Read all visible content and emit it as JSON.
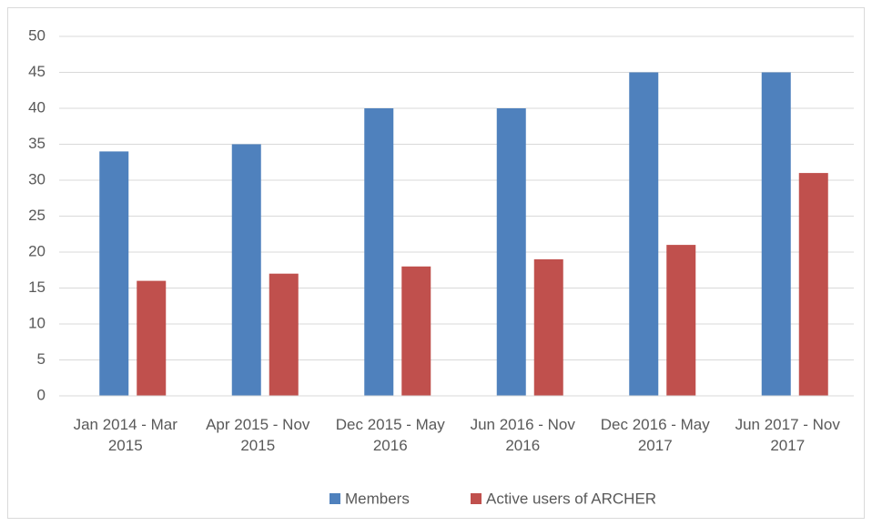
{
  "chart_data": {
    "type": "bar",
    "categories": [
      "Jan 2014 - Mar 2015",
      "Apr 2015 - Nov 2015",
      "Dec 2015 - May 2016",
      "Jun 2016 - Nov 2016",
      "Dec 2016 - May 2017",
      "Jun 2017 - Nov 2017"
    ],
    "series": [
      {
        "name": "Members",
        "color": "#4f81bd",
        "values": [
          34,
          35,
          40,
          40,
          45,
          45
        ]
      },
      {
        "name": "Active users of ARCHER",
        "color": "#c0504d",
        "values": [
          16,
          17,
          18,
          19,
          21,
          31
        ]
      }
    ],
    "ylim": [
      0,
      50
    ],
    "yticks": [
      0,
      5,
      10,
      15,
      20,
      25,
      30,
      35,
      40,
      45,
      50
    ],
    "grid": true,
    "legend": "bottom"
  }
}
